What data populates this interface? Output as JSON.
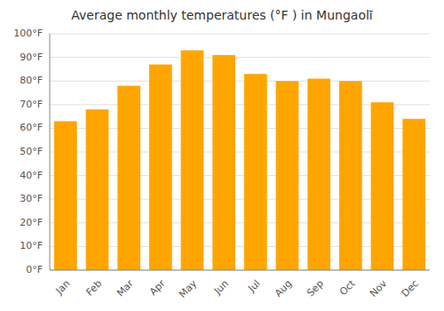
{
  "chart_data": {
    "type": "bar",
    "title": "Average monthly temperatures (°F ) in Mungaolī",
    "categories": [
      "Jan",
      "Feb",
      "Mar",
      "Apr",
      "May",
      "Jun",
      "Jul",
      "Aug",
      "Sep",
      "Oct",
      "Nov",
      "Dec"
    ],
    "values": [
      63,
      68,
      78,
      87,
      93,
      91,
      83,
      80,
      81,
      80,
      71,
      64
    ],
    "color": "#FFA500",
    "ylim": [
      0,
      100
    ],
    "yticks": [
      {
        "value": 0,
        "label": "0°F"
      },
      {
        "value": 10,
        "label": "10°F"
      },
      {
        "value": 20,
        "label": "20°F"
      },
      {
        "value": 30,
        "label": "30°F"
      },
      {
        "value": 40,
        "label": "40°F"
      },
      {
        "value": 50,
        "label": "50°F"
      },
      {
        "value": 60,
        "label": "60°F"
      },
      {
        "value": 70,
        "label": "70°F"
      },
      {
        "value": 80,
        "label": "80°F"
      },
      {
        "value": 90,
        "label": "90°F"
      },
      {
        "value": 100,
        "label": "100°F"
      }
    ],
    "grid": true
  }
}
